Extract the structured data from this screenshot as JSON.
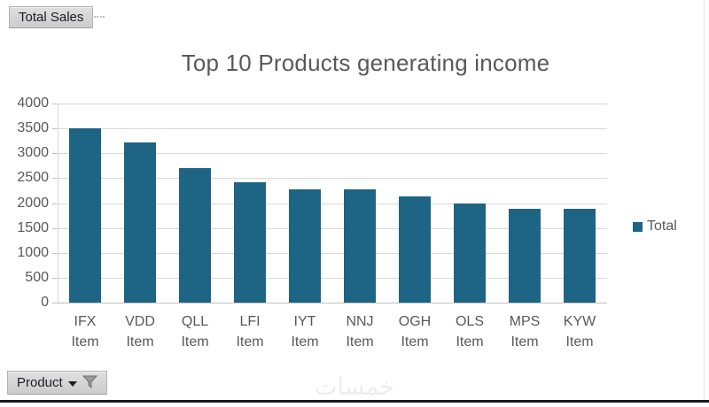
{
  "pivot_buttons": {
    "value_field_label": "Total Sales",
    "axis_field_label": "Product"
  },
  "chart_data": {
    "type": "bar",
    "title": "Top 10 Products generating income",
    "categories": [
      "IFX",
      "VDD",
      "QLL",
      "LFI",
      "IYT",
      "NNJ",
      "OGH",
      "OLS",
      "MPS",
      "KYW"
    ],
    "category_suffix": "Item",
    "series": [
      {
        "name": "Total",
        "values": [
          3500,
          3220,
          2700,
          2410,
          2270,
          2270,
          2130,
          2000,
          1880,
          1880
        ]
      }
    ],
    "xlabel": "",
    "ylabel": "",
    "ylim": [
      0,
      4000
    ],
    "ytick_step": 500,
    "grid": true,
    "legend_position": "right",
    "colors": {
      "bar": "#1E6484",
      "title_text": "#595959",
      "axis_text": "#595959",
      "gridline": "#D9D9D9",
      "axis_line": "#BFBFBF"
    }
  },
  "legend": {
    "label": "Total"
  },
  "icons": {
    "dropdown": "down-triangle",
    "filter": "funnel"
  },
  "watermark": {
    "text": "خمسات"
  }
}
